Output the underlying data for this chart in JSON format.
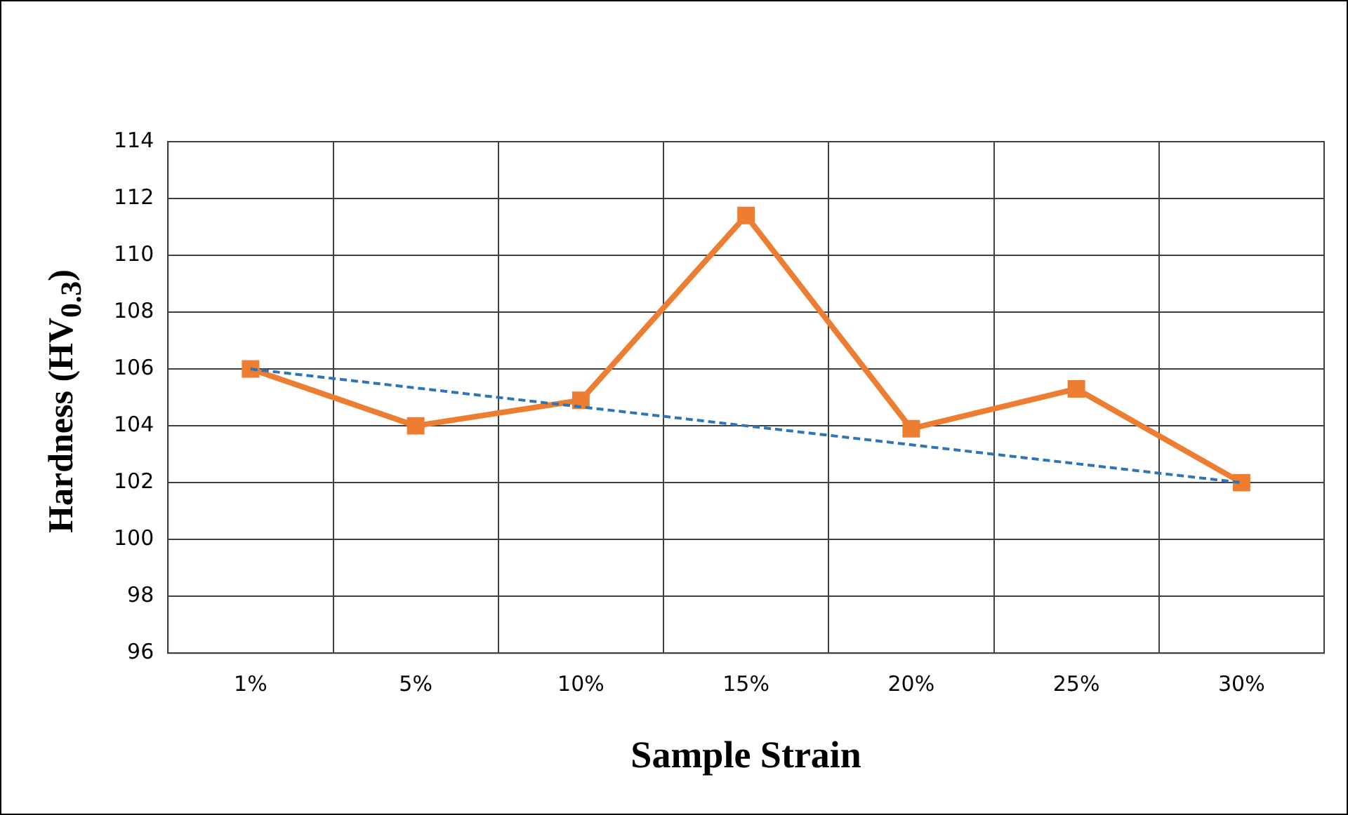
{
  "chart_data": {
    "type": "line",
    "xlabel": "Sample Strain",
    "ylabel": "Hardness (HV$_{0.3}$)",
    "categories": [
      "1%",
      "5%",
      "10%",
      "15%",
      "20%",
      "25%",
      "30%"
    ],
    "series": [
      {
        "color": "#ed7d31",
        "values": [
          106,
          104,
          104.9,
          111.4,
          103.9,
          105.3,
          102
        ],
        "marker": "square",
        "line_style": "solid"
      },
      {
        "color": "#2e75b6",
        "x": [
          "1%",
          "30%"
        ],
        "values": [
          106,
          102
        ],
        "marker": "none",
        "line_style": "dashed"
      }
    ],
    "ylim": [
      96,
      114
    ],
    "yticks": [
      96,
      98,
      100,
      102,
      104,
      106,
      108,
      110,
      112,
      114
    ],
    "grid": true
  }
}
